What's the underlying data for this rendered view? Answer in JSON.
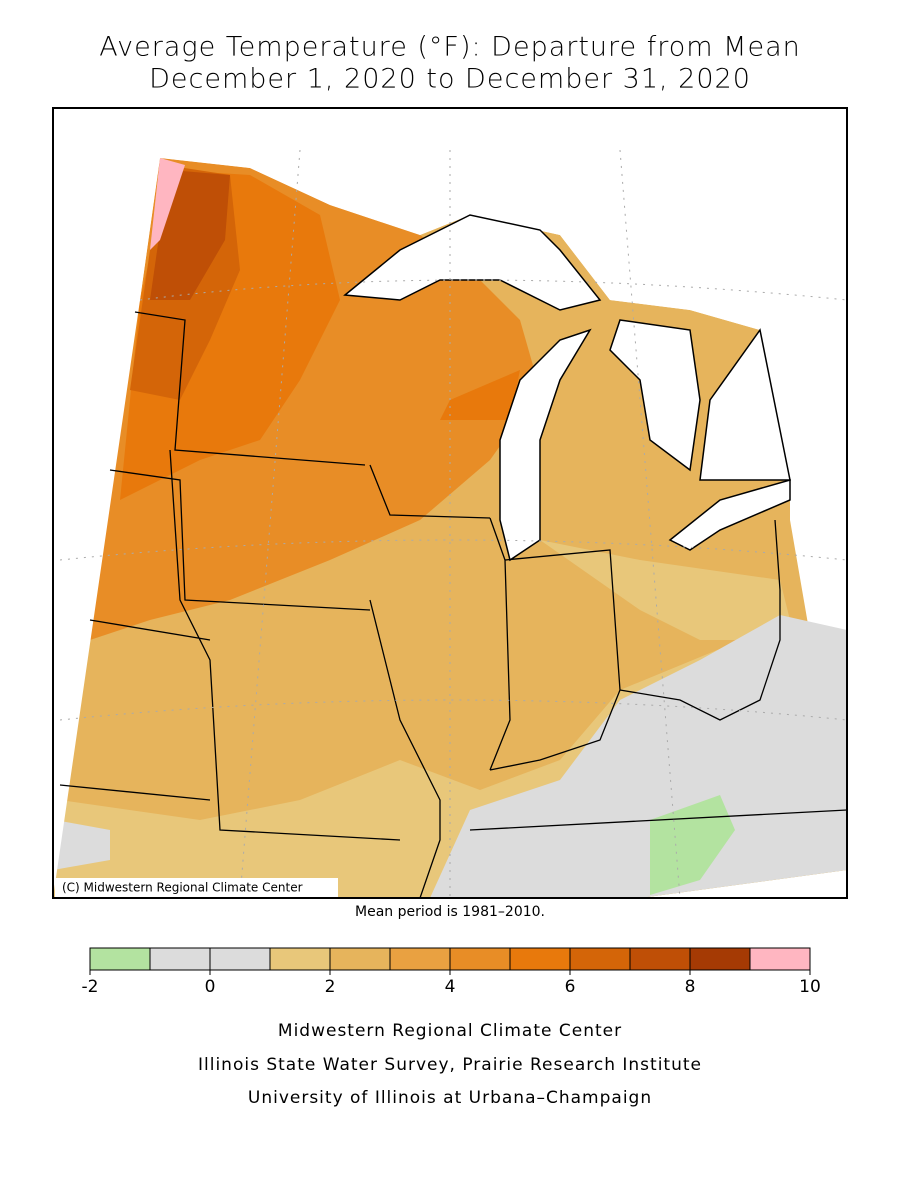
{
  "title": [
    "Average Temperature (°F): Departure from Mean",
    "December 1, 2020 to December 31, 2020"
  ],
  "map": {
    "copyright": "(C) Midwestern Regional Climate Center"
  },
  "note": "Mean period is 1981–2010.",
  "colorbar": {
    "bins": [
      -2,
      -1,
      0,
      1,
      2,
      3,
      4,
      5,
      6,
      7,
      8,
      9,
      10
    ],
    "colors": [
      "#b3e3a0",
      "#dcdcdc",
      "#dcdcdc",
      "#e8c77a",
      "#e6b45c",
      "#e9a141",
      "#e88d26",
      "#e8790c",
      "#d46508",
      "#bf4f06",
      "#a53a04",
      "#ffb6c1"
    ],
    "ticks": [
      -2,
      0,
      2,
      4,
      6,
      8,
      10
    ]
  },
  "credits": [
    "Midwestern Regional Climate Center",
    "Illinois State Water Survey, Prairie Research Institute",
    "University of Illinois at Urbana–Champaign"
  ]
}
